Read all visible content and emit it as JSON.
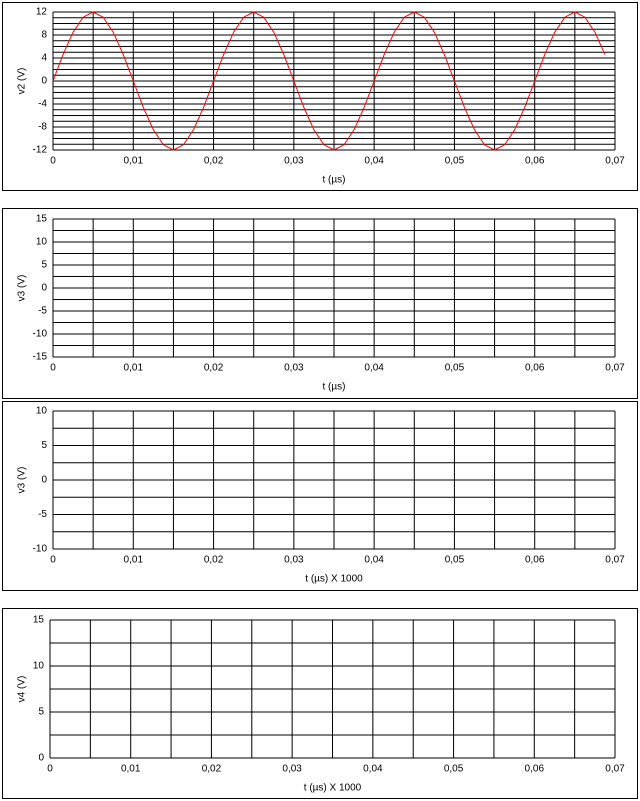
{
  "chart_data": [
    {
      "type": "line",
      "ylabel": "v2 (V)",
      "xlabel": "t (µs)",
      "color": "#ff0000",
      "x": [
        0,
        0.00125,
        0.0025,
        0.00375,
        0.005,
        0.00625,
        0.0075,
        0.00875,
        0.01,
        0.01125,
        0.0125,
        0.01375,
        0.015,
        0.01625,
        0.0175,
        0.01875,
        0.02,
        0.02125,
        0.0225,
        0.02375,
        0.025,
        0.02625,
        0.0275,
        0.02875,
        0.03,
        0.03125,
        0.0325,
        0.03375,
        0.035,
        0.03625,
        0.0375,
        0.03875,
        0.04,
        0.04125,
        0.0425,
        0.04375,
        0.045,
        0.04625,
        0.0475,
        0.04875,
        0.05,
        0.05125,
        0.0525,
        0.05375,
        0.055,
        0.05625,
        0.0575,
        0.05875,
        0.06,
        0.06125,
        0.0625,
        0.06375,
        0.065,
        0.06625,
        0.0675,
        0.06875
      ],
      "values": [
        0,
        4.59,
        8.49,
        11.09,
        12,
        11.09,
        8.49,
        4.59,
        0,
        -4.59,
        -8.49,
        -11.09,
        -12,
        -11.09,
        -8.49,
        -4.59,
        0,
        4.59,
        8.49,
        11.09,
        12,
        11.09,
        8.49,
        4.59,
        0,
        -4.59,
        -8.49,
        -11.09,
        -12,
        -11.09,
        -8.49,
        -4.59,
        0,
        4.59,
        8.49,
        11.09,
        12,
        11.09,
        8.49,
        4.59,
        0,
        -4.59,
        -8.49,
        -11.09,
        -12,
        -11.09,
        -8.49,
        -4.59,
        0,
        4.59,
        8.49,
        11.09,
        12,
        11.09,
        8.49,
        4.59
      ],
      "xlim": [
        0,
        0.07
      ],
      "xticks": [
        0,
        {
          "value": 0.01,
          "label": "0,01"
        },
        {
          "value": 0.02,
          "label": "0,02"
        },
        {
          "value": 0.03,
          "label": "0,03"
        },
        {
          "value": 0.04,
          "label": "0,04"
        },
        {
          "value": 0.05,
          "label": "0,05"
        },
        {
          "value": 0.06,
          "label": "0,06"
        },
        {
          "value": 0.07,
          "label": "0,07"
        }
      ],
      "xgrid": [
        0,
        0.005,
        0.01,
        0.015,
        0.02,
        0.025,
        0.03,
        0.035,
        0.04,
        0.045,
        0.05,
        0.055,
        0.06,
        0.065,
        0.07
      ],
      "ylim": [
        -12,
        12
      ],
      "yticks": [
        -12,
        -8,
        -4,
        0,
        4,
        8,
        12
      ],
      "ygrid": [
        -12,
        -11,
        -10,
        -9,
        -8,
        -7,
        -6,
        -5,
        -4,
        -3,
        -2,
        -1,
        0,
        1,
        2,
        3,
        4,
        5,
        6,
        7,
        8,
        9,
        10,
        11,
        12
      ]
    },
    {
      "type": "line",
      "ylabel": "v3 (V)",
      "xlabel": "t (µs)",
      "xlim": [
        0,
        0.07
      ],
      "xticks": [
        0,
        {
          "value": 0.01,
          "label": "0,01"
        },
        {
          "value": 0.02,
          "label": "0,02"
        },
        {
          "value": 0.03,
          "label": "0,03"
        },
        {
          "value": 0.04,
          "label": "0,04"
        },
        {
          "value": 0.05,
          "label": "0,05"
        },
        {
          "value": 0.06,
          "label": "0,06"
        },
        {
          "value": 0.07,
          "label": "0,07"
        }
      ],
      "xgrid": [
        0,
        0.005,
        0.01,
        0.015,
        0.02,
        0.025,
        0.03,
        0.035,
        0.04,
        0.045,
        0.05,
        0.055,
        0.06,
        0.065,
        0.07
      ],
      "ylim": [
        -15,
        15
      ],
      "yticks": [
        -15,
        -10,
        -5,
        0,
        5,
        10,
        15
      ],
      "ygrid": [
        -15,
        -12.5,
        -10,
        -7.5,
        -5,
        -2.5,
        0,
        2.5,
        5,
        7.5,
        10,
        12.5,
        15
      ]
    },
    {
      "type": "line",
      "ylabel": "v3 (V)",
      "xlabel": "t (µs) X 1000",
      "xlim": [
        0,
        0.07
      ],
      "xticks": [
        0,
        {
          "value": 0.01,
          "label": "0,01"
        },
        {
          "value": 0.02,
          "label": "0,02"
        },
        {
          "value": 0.03,
          "label": "0,03"
        },
        {
          "value": 0.04,
          "label": "0,04"
        },
        {
          "value": 0.05,
          "label": "0,05"
        },
        {
          "value": 0.06,
          "label": "0,06"
        },
        {
          "value": 0.07,
          "label": "0,07"
        }
      ],
      "xgrid": [
        0,
        0.005,
        0.01,
        0.015,
        0.02,
        0.025,
        0.03,
        0.035,
        0.04,
        0.045,
        0.05,
        0.055,
        0.06,
        0.065,
        0.07
      ],
      "ylim": [
        -10,
        10
      ],
      "yticks": [
        -10,
        -5,
        0,
        5,
        10
      ],
      "ygrid": [
        -10,
        -7.5,
        -5,
        -2.5,
        0,
        2.5,
        5,
        7.5,
        10
      ]
    },
    {
      "type": "line",
      "ylabel": "v4 (V)",
      "xlabel": "t (µs) X 1000",
      "xlim": [
        0,
        0.07
      ],
      "xticks": [
        0,
        {
          "value": 0.01,
          "label": "0,01"
        },
        {
          "value": 0.02,
          "label": "0,02"
        },
        {
          "value": 0.03,
          "label": "0,03"
        },
        {
          "value": 0.04,
          "label": "0,04"
        },
        {
          "value": 0.05,
          "label": "0,05"
        },
        {
          "value": 0.06,
          "label": "0,06"
        },
        {
          "value": 0.07,
          "label": "0,07"
        }
      ],
      "xgrid": [
        0,
        0.005,
        0.01,
        0.015,
        0.02,
        0.025,
        0.03,
        0.035,
        0.04,
        0.045,
        0.05,
        0.055,
        0.06,
        0.065,
        0.07
      ],
      "ylim": [
        0,
        15
      ],
      "yticks": [
        0,
        5,
        10,
        15
      ],
      "ygrid": [
        0,
        2.5,
        5,
        7.5,
        10,
        12.5,
        15
      ]
    }
  ]
}
